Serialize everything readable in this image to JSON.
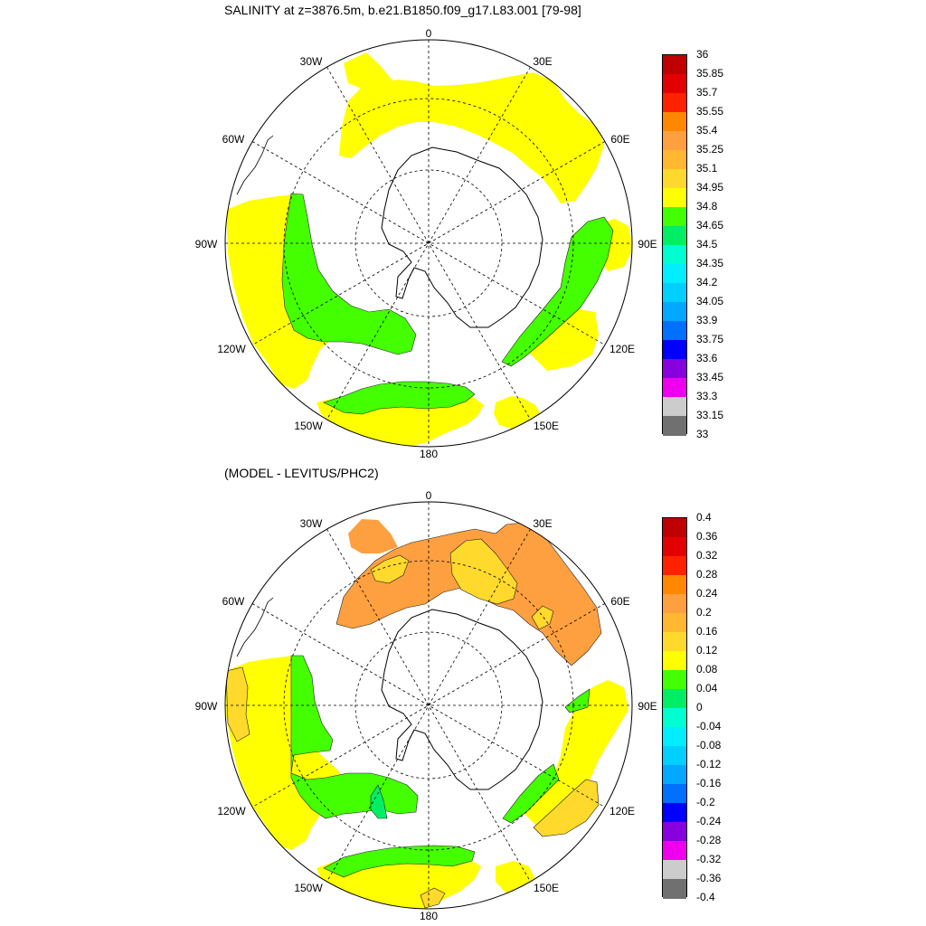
{
  "panels": [
    {
      "id": "top",
      "title": "SALINITY at z=3876.5m, b.e21.B1850.f09_g17.L83.001 [79-98]",
      "lon_labels": [
        "0",
        "30E",
        "60E",
        "90E",
        "120E",
        "150E",
        "180",
        "150W",
        "120W",
        "90W",
        "60W",
        "30W"
      ],
      "colorbar": {
        "labels": [
          "36",
          "35.85",
          "35.7",
          "35.55",
          "35.4",
          "35.25",
          "35.1",
          "34.95",
          "34.8",
          "34.65",
          "34.5",
          "34.35",
          "34.2",
          "34.05",
          "33.9",
          "33.75",
          "33.6",
          "33.45",
          "33.3",
          "33.15",
          "33"
        ],
        "colors": [
          "#c00000",
          "#e30000",
          "#ff2200",
          "#ff8800",
          "#ffa040",
          "#ffb830",
          "#ffd92b",
          "#ffff00",
          "#44ff00",
          "#00ee66",
          "#00ffd0",
          "#00eeff",
          "#00d0ff",
          "#00a8ff",
          "#0070ff",
          "#0000ff",
          "#8800dd",
          "#ee00ee",
          "#cccccc",
          "#707070"
        ]
      }
    },
    {
      "id": "bottom",
      "title": "(MODEL - LEVITUS/PHC2)",
      "lon_labels": [
        "0",
        "30E",
        "60E",
        "90E",
        "120E",
        "150E",
        "180",
        "150W",
        "120W",
        "90W",
        "60W",
        "30W"
      ],
      "colorbar": {
        "labels": [
          "0.4",
          "0.36",
          "0.32",
          "0.28",
          "0.24",
          "0.2",
          "0.16",
          "0.12",
          "0.08",
          "0.04",
          "0",
          "-0.04",
          "-0.08",
          "-0.12",
          "-0.16",
          "-0.2",
          "-0.24",
          "-0.28",
          "-0.32",
          "-0.36",
          "-0.4"
        ],
        "colors": [
          "#c00000",
          "#e30000",
          "#ff2200",
          "#ff8800",
          "#ffa040",
          "#ffb830",
          "#ffd92b",
          "#ffff00",
          "#44ff00",
          "#00ee66",
          "#00ffd0",
          "#00eeff",
          "#00d0ff",
          "#00a8ff",
          "#0070ff",
          "#0000ff",
          "#8800dd",
          "#ee00ee",
          "#cccccc",
          "#707070"
        ]
      }
    }
  ]
}
